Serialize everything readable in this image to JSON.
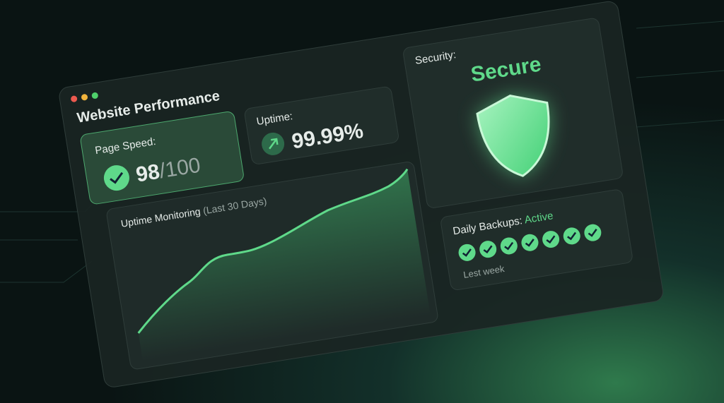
{
  "window": {
    "title": "Website Performance"
  },
  "page_speed": {
    "label": "Page Speed:",
    "score": "98",
    "max": "/100"
  },
  "uptime": {
    "label": "Uptime:",
    "value": "99.99%"
  },
  "monitoring": {
    "title": "Uptime Monitoring",
    "period": "(Last 30 Days)"
  },
  "security": {
    "label": "Security:",
    "status": "Secure"
  },
  "backups": {
    "label": "Daily Backups:",
    "status": "Active",
    "caption": "Lest week"
  }
}
